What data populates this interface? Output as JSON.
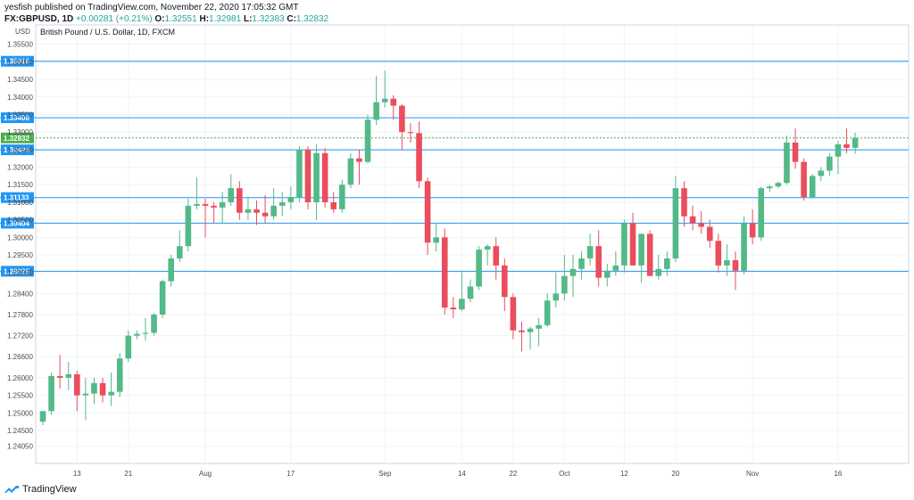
{
  "header": {
    "published": "yesfish published on TradingView.com, November 22, 2020 17:05:32 GMT",
    "symbol": "FX:GBPUSD, 1D",
    "change": "+0.00281 (+0.21%)",
    "o_label": "O:",
    "o": "1.32551",
    "h_label": "H:",
    "h": "1.32981",
    "l_label": "L:",
    "l": "1.32383",
    "c_label": "C:",
    "c": "1.32832"
  },
  "footer": {
    "brand": "TradingView"
  },
  "colors": {
    "up": "#53b987",
    "down": "#eb4d5c",
    "line": "#2196f3",
    "axis_text": "#4a4a4a",
    "last_price": "#4caf50"
  },
  "chart_data": {
    "type": "candlestick",
    "title": "British Pound / U.S. Dollar, 1D, FXCM",
    "currency_label": "USD",
    "ylim": [
      1.2356,
      1.3605
    ],
    "y_ticks": [
      "1.35500",
      "1.35000",
      "1.34500",
      "1.34000",
      "1.33500",
      "1.33000",
      "1.32500",
      "1.32000",
      "1.31500",
      "1.31000",
      "1.30500",
      "1.30000",
      "1.29500",
      "1.29000",
      "1.28400",
      "1.27800",
      "1.27200",
      "1.26600",
      "1.26000",
      "1.25500",
      "1.25000",
      "1.24500",
      "1.24050"
    ],
    "y_tick_values": [
      1.355,
      1.35,
      1.345,
      1.34,
      1.335,
      1.33,
      1.325,
      1.32,
      1.315,
      1.31,
      1.305,
      1.3,
      1.295,
      1.29,
      1.284,
      1.278,
      1.272,
      1.266,
      1.26,
      1.255,
      1.25,
      1.245,
      1.2405
    ],
    "x_ticks": [
      {
        "label": "13",
        "index": 4
      },
      {
        "label": "21",
        "index": 10
      },
      {
        "label": "Aug",
        "index": 19
      },
      {
        "label": "17",
        "index": 29
      },
      {
        "label": "Sep",
        "index": 40
      },
      {
        "label": "14",
        "index": 49
      },
      {
        "label": "22",
        "index": 55
      },
      {
        "label": "Oct",
        "index": 61
      },
      {
        "label": "12",
        "index": 68
      },
      {
        "label": "20",
        "index": 74
      },
      {
        "label": "Nov",
        "index": 83
      },
      {
        "label": "16",
        "index": 93
      }
    ],
    "horizontal_lines": [
      {
        "value": 1.35016,
        "label": "1.35016"
      },
      {
        "value": 1.33408,
        "label": "1.33408"
      },
      {
        "value": 1.32493,
        "label": "1.32493"
      },
      {
        "value": 1.31133,
        "label": "1.31133"
      },
      {
        "value": 1.30404,
        "label": "1.30404"
      },
      {
        "value": 1.29035,
        "label": "1.29035"
      }
    ],
    "last_price": {
      "value": 1.32832,
      "label": "1.32832"
    },
    "candles": [
      [
        1.2475,
        1.2505,
        1.2465,
        1.2505
      ],
      [
        1.2505,
        1.2615,
        1.2495,
        1.2605
      ],
      [
        1.2605,
        1.2665,
        1.257,
        1.26
      ],
      [
        1.26,
        1.2645,
        1.2565,
        1.261
      ],
      [
        1.261,
        1.262,
        1.2505,
        1.255
      ],
      [
        1.255,
        1.26,
        1.248,
        1.2555
      ],
      [
        1.2555,
        1.26,
        1.2525,
        1.2585
      ],
      [
        1.2585,
        1.26,
        1.253,
        1.255
      ],
      [
        1.255,
        1.2615,
        1.252,
        1.256
      ],
      [
        1.256,
        1.267,
        1.2545,
        1.2655
      ],
      [
        1.2655,
        1.2735,
        1.2645,
        1.272
      ],
      [
        1.272,
        1.2735,
        1.271,
        1.2725
      ],
      [
        1.2725,
        1.277,
        1.2705,
        1.2728
      ],
      [
        1.2728,
        1.2785,
        1.272,
        1.278
      ],
      [
        1.278,
        1.288,
        1.277,
        1.2875
      ],
      [
        1.2875,
        1.295,
        1.286,
        1.294
      ],
      [
        1.294,
        1.302,
        1.293,
        1.2975
      ],
      [
        1.2975,
        1.311,
        1.296,
        1.309
      ],
      [
        1.309,
        1.317,
        1.308,
        1.3095
      ],
      [
        1.3095,
        1.311,
        1.3,
        1.309
      ],
      [
        1.309,
        1.31,
        1.304,
        1.3085
      ],
      [
        1.3085,
        1.313,
        1.304,
        1.31
      ],
      [
        1.31,
        1.318,
        1.309,
        1.314
      ],
      [
        1.314,
        1.316,
        1.305,
        1.307
      ],
      [
        1.307,
        1.3115,
        1.305,
        1.308
      ],
      [
        1.308,
        1.3105,
        1.3035,
        1.307
      ],
      [
        1.307,
        1.312,
        1.304,
        1.306
      ],
      [
        1.306,
        1.314,
        1.305,
        1.309
      ],
      [
        1.309,
        1.313,
        1.306,
        1.31
      ],
      [
        1.31,
        1.3145,
        1.308,
        1.3115
      ],
      [
        1.3115,
        1.326,
        1.31,
        1.325
      ],
      [
        1.325,
        1.326,
        1.308,
        1.31
      ],
      [
        1.31,
        1.3265,
        1.305,
        1.324
      ],
      [
        1.324,
        1.3255,
        1.3085,
        1.31
      ],
      [
        1.31,
        1.313,
        1.307,
        1.308
      ],
      [
        1.308,
        1.3165,
        1.307,
        1.315
      ],
      [
        1.315,
        1.324,
        1.314,
        1.3225
      ],
      [
        1.3225,
        1.325,
        1.315,
        1.3215
      ],
      [
        1.3215,
        1.335,
        1.321,
        1.3335
      ],
      [
        1.3335,
        1.346,
        1.332,
        1.3385
      ],
      [
        1.3385,
        1.3475,
        1.337,
        1.3395
      ],
      [
        1.3395,
        1.3405,
        1.3335,
        1.3375
      ],
      [
        1.3375,
        1.338,
        1.325,
        1.33
      ],
      [
        1.33,
        1.3325,
        1.327,
        1.3297
      ],
      [
        1.3297,
        1.333,
        1.314,
        1.316
      ],
      [
        1.316,
        1.317,
        1.295,
        1.2985
      ],
      [
        1.2985,
        1.304,
        1.296,
        1.3
      ],
      [
        1.3,
        1.3025,
        1.278,
        1.28
      ],
      [
        1.28,
        1.283,
        1.277,
        1.2795
      ],
      [
        1.2795,
        1.29,
        1.279,
        1.2825
      ],
      [
        1.2825,
        1.288,
        1.2815,
        1.286
      ],
      [
        1.286,
        1.2975,
        1.285,
        1.2965
      ],
      [
        1.2965,
        1.298,
        1.292,
        1.2975
      ],
      [
        1.2975,
        1.3,
        1.288,
        1.292
      ],
      [
        1.292,
        1.294,
        1.279,
        1.283
      ],
      [
        1.283,
        1.284,
        1.271,
        1.2735
      ],
      [
        1.2735,
        1.276,
        1.2675,
        1.273
      ],
      [
        1.273,
        1.2745,
        1.268,
        1.274
      ],
      [
        1.274,
        1.277,
        1.269,
        1.275
      ],
      [
        1.275,
        1.284,
        1.2745,
        1.282
      ],
      [
        1.282,
        1.29,
        1.28,
        1.284
      ],
      [
        1.284,
        1.295,
        1.282,
        1.289
      ],
      [
        1.289,
        1.295,
        1.283,
        1.291
      ],
      [
        1.291,
        1.296,
        1.288,
        1.294
      ],
      [
        1.294,
        1.301,
        1.292,
        1.2975
      ],
      [
        1.2975,
        1.302,
        1.286,
        1.2885
      ],
      [
        1.2885,
        1.2925,
        1.286,
        1.2905
      ],
      [
        1.2905,
        1.296,
        1.289,
        1.292
      ],
      [
        1.292,
        1.305,
        1.29,
        1.304
      ],
      [
        1.304,
        1.307,
        1.293,
        1.292
      ],
      [
        1.292,
        1.301,
        1.287,
        1.301
      ],
      [
        1.301,
        1.302,
        1.289,
        1.289
      ],
      [
        1.289,
        1.295,
        1.288,
        1.291
      ],
      [
        1.291,
        1.296,
        1.289,
        1.294
      ],
      [
        1.294,
        1.3175,
        1.293,
        1.314
      ],
      [
        1.314,
        1.316,
        1.303,
        1.306
      ],
      [
        1.306,
        1.309,
        1.302,
        1.304
      ],
      [
        1.304,
        1.3075,
        1.301,
        1.303
      ],
      [
        1.303,
        1.305,
        1.297,
        1.299
      ],
      [
        1.299,
        1.301,
        1.29,
        1.292
      ],
      [
        1.292,
        1.298,
        1.289,
        1.2935
      ],
      [
        1.2935,
        1.296,
        1.285,
        1.2905
      ],
      [
        1.2905,
        1.306,
        1.2895,
        1.304
      ],
      [
        1.304,
        1.308,
        1.298,
        1.3
      ],
      [
        1.3,
        1.3145,
        1.299,
        1.314
      ],
      [
        1.314,
        1.315,
        1.313,
        1.3145
      ],
      [
        1.3145,
        1.316,
        1.314,
        1.3155
      ],
      [
        1.3155,
        1.329,
        1.315,
        1.327
      ],
      [
        1.327,
        1.331,
        1.3195,
        1.3215
      ],
      [
        1.3215,
        1.3225,
        1.3105,
        1.3115
      ],
      [
        1.3115,
        1.318,
        1.311,
        1.3175
      ],
      [
        1.3175,
        1.32,
        1.316,
        1.319
      ],
      [
        1.319,
        1.324,
        1.3175,
        1.323
      ],
      [
        1.323,
        1.3275,
        1.318,
        1.3265
      ],
      [
        1.3265,
        1.331,
        1.324,
        1.3255
      ],
      [
        1.3255,
        1.3298,
        1.3238,
        1.3283
      ]
    ]
  }
}
